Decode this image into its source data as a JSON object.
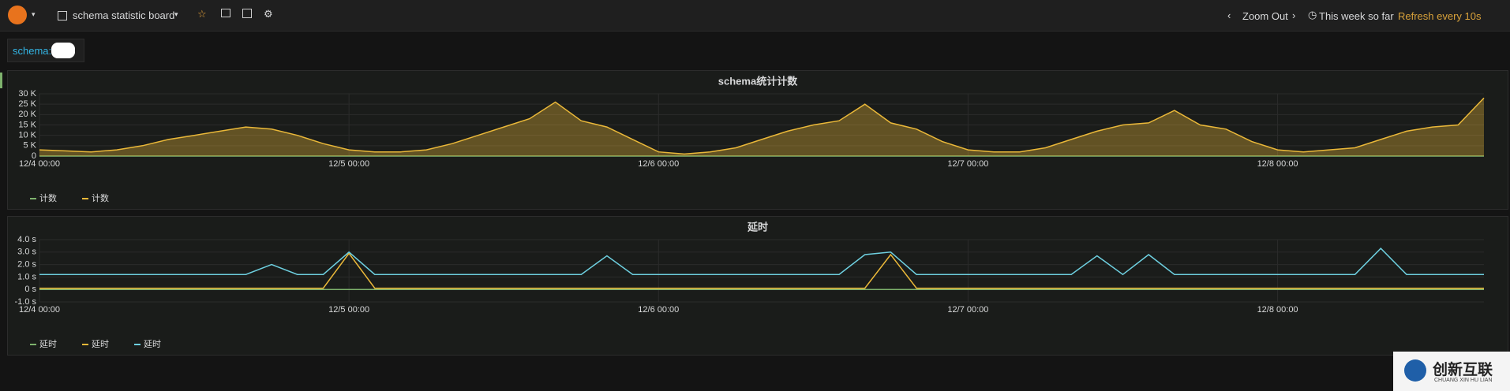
{
  "header": {
    "title": "schema statistic board",
    "zoom": "Zoom Out",
    "range": "This week so far",
    "refresh": "Refresh every 10s"
  },
  "variables": {
    "label": "schema:"
  },
  "watermark": {
    "title": "创新互联",
    "subtitle": "CHUANG XIN HU LIAN"
  },
  "chart_data": [
    {
      "type": "line",
      "title": "schema统计计数",
      "x": [
        "12/4 00:00",
        "12/4 02:00",
        "12/4 04:00",
        "12/4 06:00",
        "12/4 08:00",
        "12/4 10:00",
        "12/4 12:00",
        "12/4 14:00",
        "12/4 16:00",
        "12/4 18:00",
        "12/4 20:00",
        "12/4 22:00",
        "12/5 00:00",
        "12/5 02:00",
        "12/5 04:00",
        "12/5 06:00",
        "12/5 08:00",
        "12/5 10:00",
        "12/5 12:00",
        "12/5 14:00",
        "12/5 16:00",
        "12/5 18:00",
        "12/5 20:00",
        "12/5 22:00",
        "12/6 00:00",
        "12/6 02:00",
        "12/6 04:00",
        "12/6 06:00",
        "12/6 08:00",
        "12/6 10:00",
        "12/6 12:00",
        "12/6 14:00",
        "12/6 16:00",
        "12/6 18:00",
        "12/6 20:00",
        "12/6 22:00",
        "12/7 00:00",
        "12/7 02:00",
        "12/7 04:00",
        "12/7 06:00",
        "12/7 08:00",
        "12/7 10:00",
        "12/7 12:00",
        "12/7 14:00",
        "12/7 16:00",
        "12/7 18:00",
        "12/7 20:00",
        "12/7 22:00",
        "12/8 00:00",
        "12/8 02:00",
        "12/8 04:00",
        "12/8 06:00",
        "12/8 08:00",
        "12/8 10:00",
        "12/8 12:00",
        "12/8 14:00",
        "12/8 16:00"
      ],
      "xlim": [
        "12/4 00:00",
        "12/8 16:00"
      ],
      "xticks": [
        "12/4 00:00",
        "12/5 00:00",
        "12/6 00:00",
        "12/7 00:00",
        "12/8 00:00"
      ],
      "ylim": [
        0,
        30000
      ],
      "yticks": [
        0,
        {
          "value": 5000,
          "label": "5 K"
        },
        {
          "value": 10000,
          "label": "10 K"
        },
        {
          "value": 15000,
          "label": "15 K"
        },
        {
          "value": 20000,
          "label": "20 K"
        },
        {
          "value": 25000,
          "label": "25 K"
        },
        {
          "value": 30000,
          "label": "30 K"
        }
      ],
      "grid": true,
      "series": [
        {
          "name": "计数",
          "color": "#7eb26d",
          "fill": false,
          "values": [
            0,
            0,
            0,
            0,
            0,
            0,
            0,
            0,
            0,
            0,
            0,
            0,
            0,
            0,
            0,
            0,
            0,
            0,
            0,
            0,
            0,
            0,
            0,
            0,
            0,
            0,
            0,
            0,
            0,
            0,
            0,
            0,
            0,
            0,
            0,
            0,
            0,
            0,
            0,
            0,
            0,
            0,
            0,
            0,
            0,
            0,
            0,
            0,
            0,
            0,
            0,
            0,
            0,
            0,
            0,
            0,
            0
          ]
        },
        {
          "name": "计数",
          "color": "#eab839",
          "fill": true,
          "values": [
            3000,
            2500,
            2000,
            3000,
            5000,
            8000,
            10000,
            12000,
            14000,
            13000,
            10000,
            6000,
            3000,
            2000,
            2000,
            3000,
            6000,
            10000,
            14000,
            18000,
            26000,
            17000,
            14000,
            8000,
            2000,
            1000,
            2000,
            4000,
            8000,
            12000,
            15000,
            17000,
            25000,
            16000,
            13000,
            7000,
            3000,
            2000,
            2000,
            4000,
            8000,
            12000,
            15000,
            16000,
            22000,
            15000,
            13000,
            7000,
            3000,
            2000,
            3000,
            4000,
            8000,
            12000,
            14000,
            15000,
            28000
          ]
        }
      ]
    },
    {
      "type": "line",
      "title": "延时",
      "x": [
        "12/4 00:00",
        "12/4 02:00",
        "12/4 04:00",
        "12/4 06:00",
        "12/4 08:00",
        "12/4 10:00",
        "12/4 12:00",
        "12/4 14:00",
        "12/4 16:00",
        "12/4 18:00",
        "12/4 20:00",
        "12/4 22:00",
        "12/5 00:00",
        "12/5 02:00",
        "12/5 04:00",
        "12/5 06:00",
        "12/5 08:00",
        "12/5 10:00",
        "12/5 12:00",
        "12/5 14:00",
        "12/5 16:00",
        "12/5 18:00",
        "12/5 20:00",
        "12/5 22:00",
        "12/6 00:00",
        "12/6 02:00",
        "12/6 04:00",
        "12/6 06:00",
        "12/6 08:00",
        "12/6 10:00",
        "12/6 12:00",
        "12/6 14:00",
        "12/6 16:00",
        "12/6 18:00",
        "12/6 20:00",
        "12/6 22:00",
        "12/7 00:00",
        "12/7 02:00",
        "12/7 04:00",
        "12/7 06:00",
        "12/7 08:00",
        "12/7 10:00",
        "12/7 12:00",
        "12/7 14:00",
        "12/7 16:00",
        "12/7 18:00",
        "12/7 20:00",
        "12/7 22:00",
        "12/8 00:00",
        "12/8 02:00",
        "12/8 04:00",
        "12/8 06:00",
        "12/8 08:00",
        "12/8 10:00",
        "12/8 12:00",
        "12/8 14:00",
        "12/8 16:00"
      ],
      "xlim": [
        "12/4 00:00",
        "12/8 16:00"
      ],
      "xticks": [
        "12/4 00:00",
        "12/5 00:00",
        "12/6 00:00",
        "12/7 00:00",
        "12/8 00:00"
      ],
      "ylim": [
        -1,
        4
      ],
      "yticks": [
        {
          "value": -1,
          "label": "-1.0 s"
        },
        {
          "value": 0,
          "label": "0 s"
        },
        {
          "value": 1,
          "label": "1.0 s"
        },
        {
          "value": 2,
          "label": "2.0 s"
        },
        {
          "value": 3,
          "label": "3.0 s"
        },
        {
          "value": 4,
          "label": "4.0 s"
        }
      ],
      "grid": true,
      "series": [
        {
          "name": "延时",
          "color": "#7eb26d",
          "fill": false,
          "values": [
            0,
            0,
            0,
            0,
            0,
            0,
            0,
            0,
            0,
            0,
            0,
            0,
            0,
            0,
            0,
            0,
            0,
            0,
            0,
            0,
            0,
            0,
            0,
            0,
            0,
            0,
            0,
            0,
            0,
            0,
            0,
            0,
            0,
            0,
            0,
            0,
            0,
            0,
            0,
            0,
            0,
            0,
            0,
            0,
            0,
            0,
            0,
            0,
            0,
            0,
            0,
            0,
            0,
            0,
            0,
            0,
            0
          ]
        },
        {
          "name": "延时",
          "color": "#eab839",
          "fill": false,
          "values": [
            0.1,
            0.1,
            0.1,
            0.1,
            0.1,
            0.1,
            0.1,
            0.1,
            0.1,
            0.1,
            0.1,
            0.1,
            2.9,
            0.1,
            0.1,
            0.1,
            0.1,
            0.1,
            0.1,
            0.1,
            0.1,
            0.1,
            0.1,
            0.1,
            0.1,
            0.1,
            0.1,
            0.1,
            0.1,
            0.1,
            0.1,
            0.1,
            0.1,
            2.8,
            0.1,
            0.1,
            0.1,
            0.1,
            0.1,
            0.1,
            0.1,
            0.1,
            0.1,
            0.1,
            0.1,
            0.1,
            0.1,
            0.1,
            0.1,
            0.1,
            0.1,
            0.1,
            0.1,
            0.1,
            0.1,
            0.1,
            0.1
          ]
        },
        {
          "name": "延时",
          "color": "#6ed0e0",
          "fill": false,
          "values": [
            1.2,
            1.2,
            1.2,
            1.2,
            1.2,
            1.2,
            1.2,
            1.2,
            1.2,
            2.0,
            1.2,
            1.2,
            3.0,
            1.2,
            1.2,
            1.2,
            1.2,
            1.2,
            1.2,
            1.2,
            1.2,
            1.2,
            2.7,
            1.2,
            1.2,
            1.2,
            1.2,
            1.2,
            1.2,
            1.2,
            1.2,
            1.2,
            2.8,
            3.0,
            1.2,
            1.2,
            1.2,
            1.2,
            1.2,
            1.2,
            1.2,
            2.7,
            1.2,
            2.8,
            1.2,
            1.2,
            1.2,
            1.2,
            1.2,
            1.2,
            1.2,
            1.2,
            3.3,
            1.2,
            1.2,
            1.2,
            1.2
          ]
        }
      ]
    }
  ]
}
